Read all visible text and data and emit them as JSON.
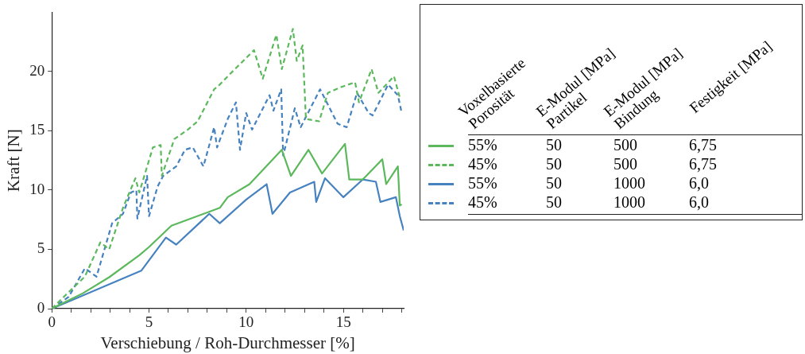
{
  "chart_data": {
    "type": "line",
    "xlabel": "Verschiebung / Roh-Durchmesser [%]",
    "ylabel": "Kraft [N]",
    "xlim": [
      0,
      18.1
    ],
    "ylim": [
      0,
      25
    ],
    "xticks": [
      0,
      {
        "value": 1,
        "label": null
      },
      {
        "value": 2,
        "label": null
      },
      {
        "value": 3,
        "label": null
      },
      {
        "value": 4,
        "label": null
      },
      5,
      {
        "value": 6,
        "label": null
      },
      {
        "value": 7,
        "label": null
      },
      {
        "value": 8,
        "label": null
      },
      {
        "value": 9,
        "label": null
      },
      10,
      {
        "value": 11,
        "label": null
      },
      {
        "value": 12,
        "label": null
      },
      {
        "value": 13,
        "label": null
      },
      {
        "value": 14,
        "label": null
      },
      15,
      {
        "value": 16,
        "label": null
      },
      {
        "value": 17,
        "label": null
      },
      {
        "value": 18,
        "label": null
      }
    ],
    "yticks": [
      0,
      5,
      10,
      15,
      20
    ],
    "grid": false,
    "legend": "right",
    "marker": "none",
    "annotations": [
      "Voxelbasierte\nPorosität",
      "E-Modul [MPa]\nPartikel",
      "E-Modul [MPa]\nBindung",
      "Festigkeit [MPa]",
      "50",
      "500",
      "6,75",
      "50",
      "500",
      "6,75",
      "50",
      "1000",
      "6,0",
      "50",
      "1000",
      "6,0"
    ],
    "series": [
      {
        "name": "55%",
        "color": "#5cb85c",
        "line_style": "solid",
        "x": [
          0,
          1.6,
          2.95,
          4.5,
          5.0,
          6.15,
          8.64,
          9.05,
          10.17,
          11.83,
          12.3,
          13.2,
          13.9,
          15.08,
          15.3,
          16.0,
          17.0,
          17.2,
          17.8,
          17.9,
          18.0
        ],
        "values": [
          0,
          1.3,
          2.65,
          4.5,
          5.2,
          7.0,
          8.5,
          9.4,
          10.5,
          13.4,
          11.2,
          13.4,
          11.4,
          13.9,
          10.9,
          10.9,
          12.6,
          10.5,
          12.0,
          8.7,
          8.8
        ]
      },
      {
        "name": "45%",
        "color": "#5cb85c",
        "line_style": "dashed",
        "x": [
          0,
          0.87,
          1.7,
          2.5,
          2.95,
          3.66,
          4.3,
          4.5,
          5.2,
          5.6,
          5.66,
          6.3,
          7.0,
          7.5,
          8.35,
          8.64,
          9.05,
          10.4,
          10.85,
          11.55,
          11.83,
          12.4,
          12.6,
          12.9,
          13.07,
          13.75,
          14.2,
          14.9,
          15.6,
          15.8,
          16.45,
          16.8,
          17.6,
          17.9
        ],
        "values": [
          0,
          1.4,
          2.7,
          5.6,
          5.0,
          8.5,
          11.0,
          9.8,
          13.6,
          13.8,
          11.2,
          14.3,
          15.1,
          15.8,
          18.5,
          18.9,
          19.6,
          21.8,
          19.4,
          23.1,
          20.2,
          23.6,
          20.9,
          22.2,
          16.0,
          15.8,
          18.2,
          18.7,
          19.1,
          17.4,
          20.2,
          18.2,
          19.6,
          17.8
        ]
      },
      {
        "name": "55%",
        "color": "#4682c0",
        "line_style": "solid",
        "x": [
          0,
          4.6,
          5.87,
          6.4,
          8.1,
          8.64,
          10.0,
          11.05,
          11.35,
          12.25,
          13.5,
          13.6,
          14.05,
          15.0,
          16.0,
          16.67,
          16.9,
          17.7,
          17.9,
          18.1
        ],
        "values": [
          0,
          3.2,
          6.0,
          5.4,
          8.0,
          7.2,
          9.2,
          10.5,
          8.0,
          9.8,
          10.7,
          9.0,
          11.0,
          9.4,
          10.9,
          10.7,
          9.0,
          9.4,
          7.8,
          6.6
        ]
      },
      {
        "name": "45%",
        "color": "#4682c0",
        "line_style": "dashed",
        "x": [
          0,
          0.87,
          1.7,
          2.3,
          3.1,
          3.66,
          4.07,
          4.35,
          4.4,
          4.9,
          5.0,
          5.44,
          5.73,
          6.4,
          6.85,
          7.25,
          7.8,
          8.35,
          8.5,
          9.05,
          9.47,
          9.68,
          10.0,
          10.3,
          11.2,
          11.4,
          11.8,
          11.9,
          12.5,
          12.8,
          13.8,
          14.7,
          15.17,
          15.7,
          16.3,
          16.5,
          17.3,
          17.8,
          18.0
        ],
        "values": [
          0,
          1.0,
          3.4,
          2.7,
          7.2,
          8.0,
          9.8,
          10.0,
          7.6,
          11.2,
          7.8,
          10.3,
          11.2,
          12.0,
          13.4,
          13.6,
          12.0,
          15.3,
          13.6,
          16.0,
          17.4,
          13.4,
          16.5,
          15.1,
          18.0,
          16.7,
          18.5,
          12.9,
          16.9,
          15.3,
          18.5,
          15.6,
          15.3,
          18.2,
          16.5,
          16.3,
          18.9,
          18.0,
          16.5
        ]
      }
    ]
  }
}
